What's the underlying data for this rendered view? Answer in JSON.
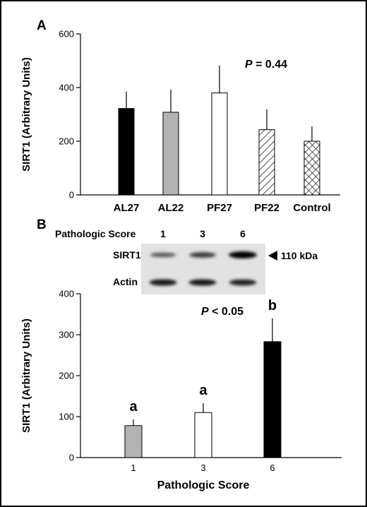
{
  "chart_data": [
    {
      "type": "bar",
      "panel": "A",
      "ylabel": "SIRT1 (Arbitrary Units)",
      "xlabel": "",
      "ylim": [
        0,
        600
      ],
      "yticks": [
        0,
        200,
        400,
        600
      ],
      "categories": [
        "AL27",
        "AL22",
        "PF27",
        "PF22",
        "Control"
      ],
      "values": [
        322,
        308,
        380,
        243,
        200
      ],
      "errors": [
        63,
        84,
        102,
        76,
        55
      ],
      "fills": [
        "solid-black",
        "gray",
        "white",
        "diagonal-hatch",
        "cross-hatch"
      ],
      "annotation": {
        "italic": "P",
        "rest": " = 0.44"
      }
    },
    {
      "type": "bar",
      "panel": "B",
      "ylabel": "SIRT1 (Arbitrary Units)",
      "xlabel": "Pathologic Score",
      "ylim": [
        0,
        400
      ],
      "yticks": [
        0,
        100,
        200,
        300,
        400
      ],
      "categories": [
        "1",
        "3",
        "6"
      ],
      "values": [
        78,
        110,
        283
      ],
      "errors": [
        15,
        23,
        57
      ],
      "fills": [
        "gray",
        "white",
        "solid-black"
      ],
      "letters": [
        "a",
        "a",
        "b"
      ],
      "annotation": {
        "italic": "P",
        "rest": " < 0.05"
      }
    }
  ],
  "blot": {
    "header_label": "Pathologic Score",
    "scores": [
      "1",
      "3",
      "6"
    ],
    "rows": [
      {
        "label": "SIRT1",
        "band_intensity": [
          0.45,
          0.65,
          1.0
        ]
      },
      {
        "label": "Actin",
        "band_intensity": [
          0.85,
          0.85,
          0.8
        ]
      }
    ],
    "marker": "110 kDa"
  },
  "colors": {
    "black": "#000000",
    "gray": "#b3b3b3",
    "white": "#ffffff"
  }
}
